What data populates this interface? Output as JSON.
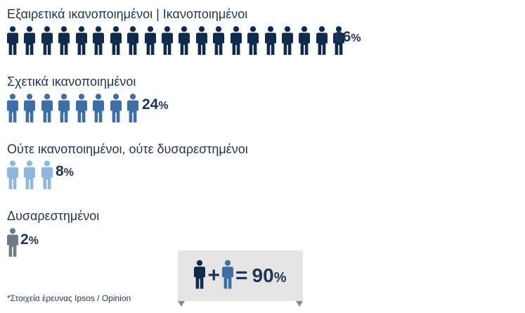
{
  "chart_data": {
    "type": "pictogram",
    "series": [
      {
        "label": "Εξαιρετικά ικανοποιημένοι | Ικανοποιημένοι",
        "value": 66,
        "display": "66",
        "icons": 20,
        "color": "#0f2b4b"
      },
      {
        "label": "Σχετικά ικανοποιημένοι",
        "value": 24,
        "display": "24",
        "icons": 8,
        "color": "#3d6ea5"
      },
      {
        "label": "Ούτε ικανοποιημένοι, ούτε δυσαρεστημένοι",
        "value": 8,
        "display": "8",
        "icons": 3,
        "color": "#8fb7de"
      },
      {
        "label": "Δυσαρεστημένοι",
        "value": 2,
        "display": "2",
        "icons": 1,
        "color": "#6f7a85"
      }
    ],
    "summary": {
      "operator_plus": "+",
      "operator_equals": "=",
      "value": 90,
      "display": "90"
    },
    "percent_symbol": "%"
  },
  "colors": {
    "text": "#1e3553",
    "summary_box": "#e5e5e5",
    "summary_box_fold": "#8a8a8a"
  },
  "footnote": "*Στοιχεία έρευνας Ipsos / Opinion"
}
